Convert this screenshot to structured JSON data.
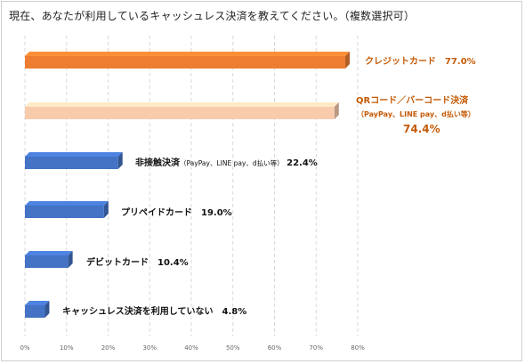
{
  "title": "現在、あなたが利用しているキャッシュレス決済を教えてください。（複数選択可）",
  "chart_data": {
    "type": "bar",
    "orientation": "horizontal",
    "title": "現在、あなたが利用しているキャッシュレス決済を教えてください。（複数選択可）",
    "xlim": [
      0,
      80
    ],
    "grid": true,
    "x_ticks": [
      "0%",
      "10%",
      "20%",
      "30%",
      "40%",
      "50%",
      "60%",
      "70%",
      "80%"
    ],
    "categories": [
      "クレジットカード",
      "QRコード／バーコード決済",
      "非接触決済",
      "プリペイドカード",
      "デビットカード",
      "キャッシュレス決済を利用していない"
    ],
    "category_notes": [
      "",
      "（PayPay、LINE pay、d払い等）",
      "（PayPay、LINE pay、d払い等）",
      "",
      "",
      ""
    ],
    "values": [
      77.0,
      74.4,
      22.4,
      19.0,
      10.4,
      4.8
    ],
    "value_labels": [
      "77.0%",
      "74.4%",
      "22.4%",
      "19.0%",
      "10.4%",
      "4.8%"
    ],
    "colors": [
      "#ed7d31",
      "#f8cbad",
      "#4472c4",
      "#4472c4",
      "#4472c4",
      "#4472c4"
    ],
    "highlight_color": "#c45a06"
  }
}
